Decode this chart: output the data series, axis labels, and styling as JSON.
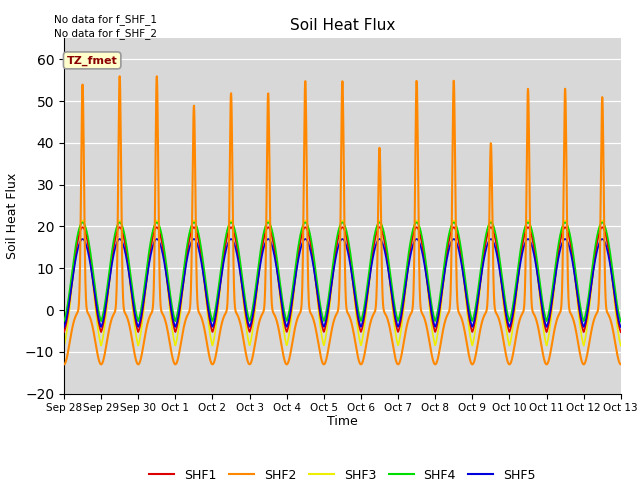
{
  "title": "Soil Heat Flux",
  "ylabel": "Soil Heat Flux",
  "xlabel": "Time",
  "ylim": [
    -20,
    65
  ],
  "yticks": [
    -20,
    -10,
    0,
    10,
    20,
    30,
    40,
    50,
    60
  ],
  "bg_color": "#d8d8d8",
  "no_data_text": [
    "No data for f_SHF_1",
    "No data for f_SHF_2"
  ],
  "tz_label": "TZ_fmet",
  "legend_entries": [
    "SHF1",
    "SHF2",
    "SHF3",
    "SHF4",
    "SHF5"
  ],
  "line_colors": {
    "SHF1": "#dd0000",
    "SHF2": "#ff8800",
    "SHF3": "#eeee00",
    "SHF4": "#00dd00",
    "SHF5": "#0000dd"
  },
  "n_days": 15,
  "tick_labels": [
    "Sep 28",
    "Sep 29",
    "Sep 30",
    "Oct 1",
    "Oct 2",
    "Oct 3",
    "Oct 4",
    "Oct 5",
    "Oct 6",
    "Oct 7",
    "Oct 8",
    "Oct 9",
    "Oct 10",
    "Oct 11",
    "Oct 12",
    "Oct 13"
  ]
}
